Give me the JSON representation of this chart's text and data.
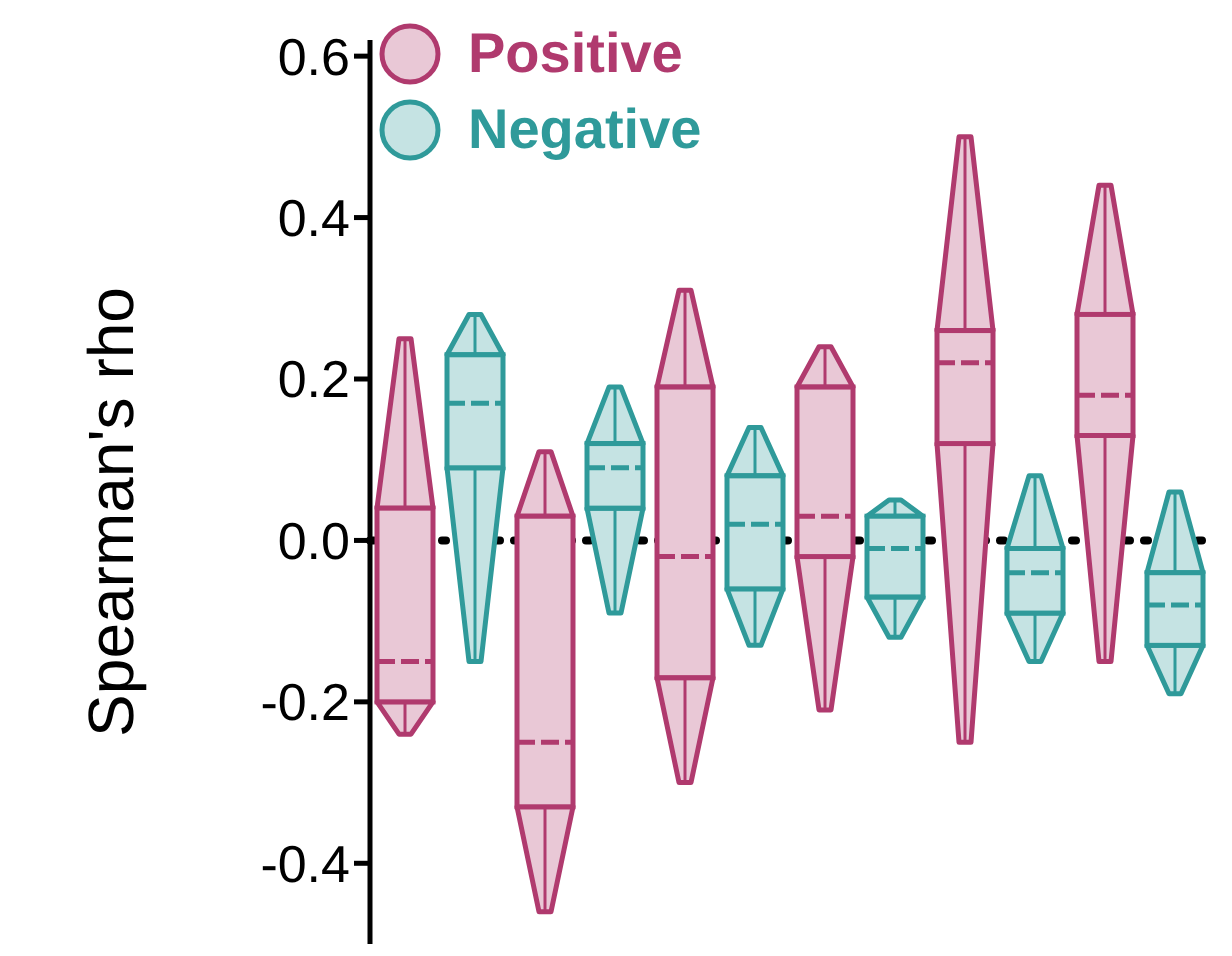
{
  "chart_data": {
    "type": "box",
    "ylabel": "Spearman's rho",
    "categories": [
      null,
      null,
      null,
      null,
      null,
      null
    ],
    "series": [
      {
        "name": "Positive",
        "color": "#b03a6e",
        "boxes": [
          {
            "low": -0.24,
            "q1": -0.2,
            "median": -0.15,
            "q3": 0.04,
            "high": 0.25
          },
          {
            "low": -0.46,
            "q1": -0.33,
            "median": -0.25,
            "q3": 0.03,
            "high": 0.11
          },
          {
            "low": -0.3,
            "q1": -0.17,
            "median": -0.02,
            "q3": 0.19,
            "high": 0.31
          },
          {
            "low": -0.21,
            "q1": -0.02,
            "median": 0.03,
            "q3": 0.19,
            "high": 0.24
          },
          {
            "low": -0.25,
            "q1": 0.12,
            "median": 0.22,
            "q3": 0.26,
            "high": 0.5
          },
          {
            "low": -0.15,
            "q1": 0.13,
            "median": 0.18,
            "q3": 0.28,
            "high": 0.44
          }
        ]
      },
      {
        "name": "Negative",
        "color": "#2f9a9a",
        "boxes": [
          {
            "low": -0.15,
            "q1": 0.09,
            "median": 0.17,
            "q3": 0.23,
            "high": 0.28
          },
          {
            "low": -0.09,
            "q1": 0.04,
            "median": 0.09,
            "q3": 0.12,
            "high": 0.19
          },
          {
            "low": -0.13,
            "q1": -0.06,
            "median": 0.02,
            "q3": 0.08,
            "high": 0.14
          },
          {
            "low": -0.12,
            "q1": -0.07,
            "median": -0.01,
            "q3": 0.03,
            "high": 0.05
          },
          {
            "low": -0.15,
            "q1": -0.09,
            "median": -0.04,
            "q3": -0.01,
            "high": 0.08
          },
          {
            "low": -0.19,
            "q1": -0.13,
            "median": -0.08,
            "q3": -0.04,
            "high": 0.06
          }
        ]
      }
    ],
    "ylim": [
      -0.5,
      0.62
    ],
    "yticks": [
      -0.4,
      -0.2,
      {
        "value": 0,
        "label": "0.0"
      },
      0.2,
      0.4,
      0.6
    ],
    "ref_lines": [
      {
        "axis": "y",
        "value": 0,
        "color": "#000000",
        "line_style": "dotted"
      }
    ],
    "legend": "top left",
    "grid": false,
    "tick_labels": "y"
  }
}
